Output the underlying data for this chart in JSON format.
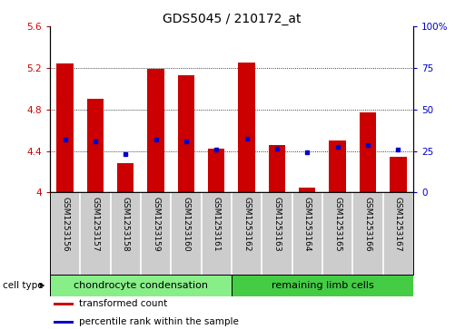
{
  "title": "GDS5045 / 210172_at",
  "samples": [
    "GSM1253156",
    "GSM1253157",
    "GSM1253158",
    "GSM1253159",
    "GSM1253160",
    "GSM1253161",
    "GSM1253162",
    "GSM1253163",
    "GSM1253164",
    "GSM1253165",
    "GSM1253166",
    "GSM1253167"
  ],
  "bar_values": [
    5.24,
    4.9,
    4.28,
    5.19,
    5.13,
    4.42,
    5.25,
    4.46,
    4.05,
    4.5,
    4.77,
    4.34
  ],
  "percentile_values": [
    4.51,
    4.49,
    4.37,
    4.51,
    4.49,
    4.41,
    4.52,
    4.42,
    4.39,
    4.44,
    4.46,
    4.41
  ],
  "bar_bottom": 4.0,
  "ylim_left": [
    4.0,
    5.6
  ],
  "ylim_right": [
    0,
    100
  ],
  "yticks_left": [
    4.0,
    4.4,
    4.8,
    5.2,
    5.6
  ],
  "yticks_right": [
    0,
    25,
    50,
    75,
    100
  ],
  "ytick_labels_left": [
    "4",
    "4.4",
    "4.8",
    "5.2",
    "5.6"
  ],
  "ytick_labels_right": [
    "0",
    "25",
    "50",
    "75",
    "100%"
  ],
  "bar_color": "#cc0000",
  "dot_color": "#0000cc",
  "bg_plot": "#ffffff",
  "bg_xtick": "#cccccc",
  "cell_type_label": "cell type",
  "groups": [
    {
      "label": "chondrocyte condensation",
      "start": 0,
      "end": 6,
      "color": "#88ee88"
    },
    {
      "label": "remaining limb cells",
      "start": 6,
      "end": 12,
      "color": "#44cc44"
    }
  ],
  "legend_items": [
    {
      "label": "transformed count",
      "color": "#cc0000"
    },
    {
      "label": "percentile rank within the sample",
      "color": "#0000cc"
    }
  ],
  "bar_width": 0.55,
  "left_label_color": "#cc0000",
  "right_label_color": "#0000cc",
  "title_fontsize": 10,
  "tick_fontsize": 7.5,
  "sample_fontsize": 6.5,
  "legend_fontsize": 7.5,
  "cell_fontsize": 8,
  "grid_yticks": [
    4.4,
    4.8,
    5.2
  ]
}
